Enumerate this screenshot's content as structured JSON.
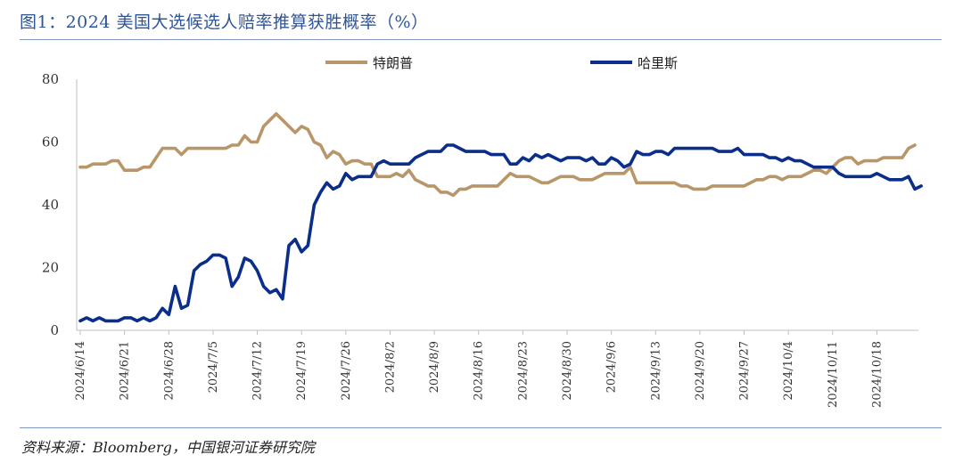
{
  "title": "图1：2024 美国大选候选人赔率推算获胜概率（%）",
  "source": "资料来源：Bloomberg，中国银河证券研究院",
  "colors": {
    "accent": "#2f5597",
    "trump": "#b8966a",
    "harris": "#0a2e8a",
    "rule": "#7f96c0"
  },
  "chart_data": {
    "type": "line",
    "title": "2024 美国大选候选人赔率推算获胜概率（%）",
    "xlabel": "",
    "ylabel": "",
    "ylim": [
      0,
      80
    ],
    "yticks": [
      0,
      20,
      40,
      60,
      80
    ],
    "grid": false,
    "legend_position": "top-center",
    "x_tick_labels": [
      "2024/6/14",
      "2024/6/21",
      "2024/6/28",
      "2024/7/5",
      "2024/7/12",
      "2024/7/19",
      "2024/7/26",
      "2024/8/2",
      "2024/8/9",
      "2024/8/16",
      "2024/8/23",
      "2024/8/30",
      "2024/9/6",
      "2024/9/13",
      "2024/9/20",
      "2024/9/27",
      "2024/10/4",
      "2024/10/11",
      "2024/10/18"
    ],
    "series": [
      {
        "name": "特朗普",
        "color": "#b8966a",
        "values": [
          52,
          52,
          53,
          53,
          53,
          54,
          54,
          51,
          51,
          51,
          52,
          52,
          55,
          58,
          58,
          58,
          56,
          58,
          58,
          58,
          58,
          58,
          58,
          58,
          59,
          59,
          62,
          60,
          60,
          65,
          67,
          69,
          67,
          65,
          63,
          65,
          64,
          60,
          59,
          55,
          57,
          56,
          53,
          54,
          54,
          53,
          53,
          49,
          49,
          49,
          50,
          49,
          51,
          48,
          47,
          46,
          46,
          44,
          44,
          43,
          45,
          45,
          46,
          46,
          46,
          46,
          46,
          48,
          50,
          49,
          49,
          49,
          48,
          47,
          47,
          48,
          49,
          49,
          49,
          48,
          48,
          48,
          49,
          50,
          50,
          50,
          50,
          52,
          47,
          47,
          47,
          47,
          47,
          47,
          47,
          46,
          46,
          45,
          45,
          45,
          46,
          46,
          46,
          46,
          46,
          46,
          47,
          48,
          48,
          49,
          49,
          48,
          49,
          49,
          49,
          50,
          51,
          51,
          50,
          52,
          54,
          55,
          55,
          53,
          54,
          54,
          54,
          55,
          55,
          55,
          55,
          58,
          59
        ]
      },
      {
        "name": "哈里斯",
        "color": "#0a2e8a",
        "values": [
          3,
          4,
          3,
          4,
          3,
          3,
          3,
          4,
          4,
          3,
          4,
          3,
          4,
          7,
          5,
          14,
          7,
          8,
          19,
          21,
          22,
          24,
          24,
          23,
          14,
          17,
          23,
          22,
          19,
          14,
          12,
          13,
          10,
          27,
          29,
          25,
          27,
          40,
          44,
          47,
          45,
          46,
          50,
          48,
          49,
          49,
          49,
          53,
          54,
          53,
          53,
          53,
          53,
          55,
          56,
          57,
          57,
          57,
          59,
          59,
          58,
          57,
          57,
          57,
          57,
          56,
          56,
          56,
          53,
          53,
          55,
          54,
          56,
          55,
          56,
          55,
          54,
          55,
          55,
          55,
          54,
          55,
          53,
          53,
          55,
          54,
          52,
          53,
          57,
          56,
          56,
          57,
          57,
          56,
          58,
          58,
          58,
          58,
          58,
          58,
          58,
          57,
          57,
          57,
          58,
          56,
          56,
          56,
          56,
          55,
          55,
          54,
          55,
          54,
          54,
          53,
          52,
          52,
          52,
          52,
          50,
          49,
          49,
          49,
          49,
          49,
          50,
          49,
          48,
          48,
          48,
          49,
          45,
          46
        ]
      }
    ]
  }
}
